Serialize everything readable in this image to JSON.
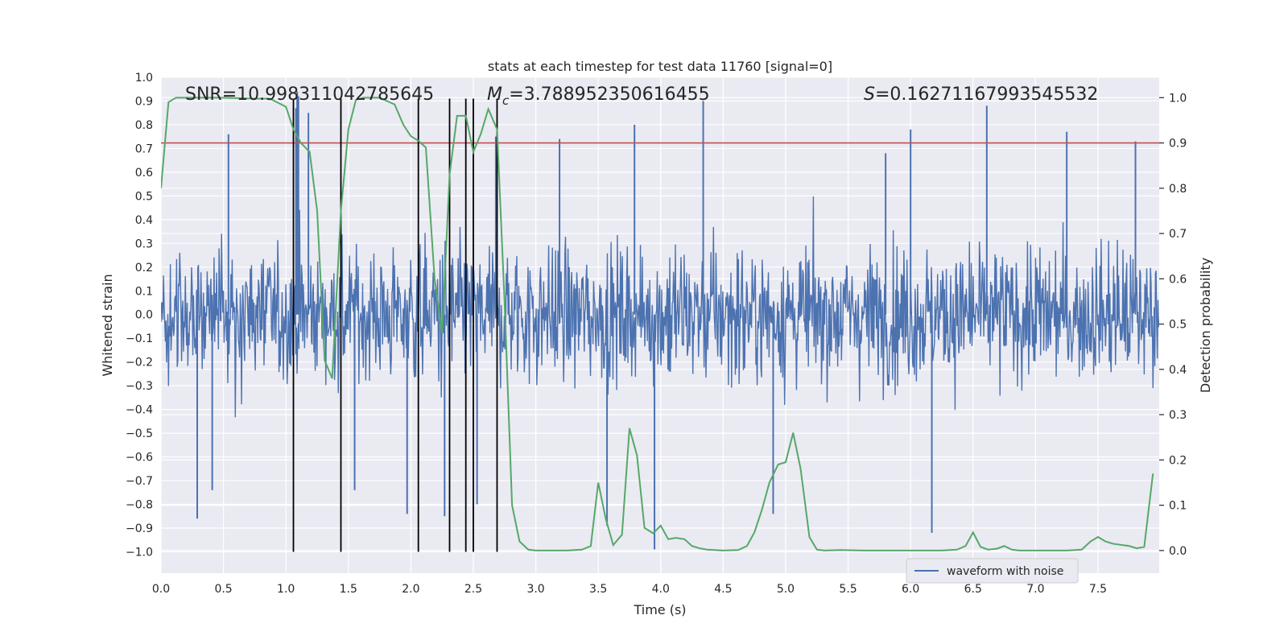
{
  "chart_data": {
    "type": "line",
    "title": "stats at each timestep for test data 11760 [signal=0]",
    "xlabel": "Time (s)",
    "ylabel_left": "Whitened strain",
    "ylabel_right": "Detection probability",
    "xlim": [
      0,
      7.99
    ],
    "ylim_left": [
      -1.09,
      1.0
    ],
    "ylim_right": [
      -0.05,
      1.045
    ],
    "x_ticks": [
      0.0,
      0.5,
      1.0,
      1.5,
      2.0,
      2.5,
      3.0,
      3.5,
      4.0,
      4.5,
      5.0,
      5.5,
      6.0,
      6.5,
      7.0,
      7.5
    ],
    "x_tick_labels": [
      "0.0",
      "0.5",
      "1.0",
      "1.5",
      "2.0",
      "2.5",
      "3.0",
      "3.5",
      "4.0",
      "4.5",
      "5.0",
      "5.5",
      "6.0",
      "6.5",
      "7.0",
      "7.5"
    ],
    "yl_ticks": [
      1.0,
      0.9,
      0.8,
      0.7,
      0.6,
      0.5,
      0.4,
      0.3,
      0.2,
      0.1,
      0.0,
      -0.1,
      -0.2,
      -0.3,
      -0.4,
      -0.5,
      -0.6,
      -0.7,
      -0.8,
      -0.9,
      -1.0
    ],
    "yl_tick_labels": [
      "1.0",
      "0.9",
      "0.8",
      "0.7",
      "0.6",
      "0.5",
      "0.4",
      "0.3",
      "0.2",
      "0.1",
      "0.0",
      "−0.1",
      "−0.2",
      "−0.3",
      "−0.4",
      "−0.5",
      "−0.6",
      "−0.7",
      "−0.8",
      "−0.9",
      "−1.0"
    ],
    "yr_ticks": [
      1.0,
      0.9,
      0.8,
      0.7,
      0.6,
      0.5,
      0.4,
      0.3,
      0.2,
      0.1,
      0.0
    ],
    "yr_tick_labels": [
      "1.0",
      "0.9",
      "0.8",
      "0.7",
      "0.6",
      "0.5",
      "0.4",
      "0.3",
      "0.2",
      "0.1",
      "0.0"
    ],
    "annotations": {
      "snr": "SNR=10.998311042785645",
      "mc_symbol": "M",
      "mc_sub": "c",
      "mc_value": "=3.788952350616455",
      "s_symbol": "S",
      "s_value": "=0.16271167993545532"
    },
    "threshold_right": 0.9,
    "event_lines_x": [
      1.06,
      1.44,
      2.06,
      2.31,
      2.44,
      2.5,
      2.69
    ],
    "event_lines_range": [
      -1.0,
      0.91
    ],
    "waveform": {
      "name": "waveform with noise",
      "color": "#4c72b0",
      "noise_sigma": 0.2,
      "samples": 1600,
      "spikes": [
        {
          "t": 0.29,
          "v": -0.86
        },
        {
          "t": 0.54,
          "v": 0.76
        },
        {
          "t": 0.41,
          "v": -0.74
        },
        {
          "t": 1.08,
          "v": 0.87
        },
        {
          "t": 1.09,
          "v": 0.94
        },
        {
          "t": 1.1,
          "v": 0.92
        },
        {
          "t": 1.55,
          "v": -0.74
        },
        {
          "t": 1.18,
          "v": 0.85
        },
        {
          "t": 1.97,
          "v": -0.84
        },
        {
          "t": 2.27,
          "v": -0.85
        },
        {
          "t": 2.53,
          "v": -0.8
        },
        {
          "t": 3.79,
          "v": 0.8
        },
        {
          "t": 3.57,
          "v": -0.89
        },
        {
          "t": 3.95,
          "v": -0.99
        },
        {
          "t": 4.34,
          "v": 0.9
        },
        {
          "t": 6.61,
          "v": 0.88
        },
        {
          "t": 6.17,
          "v": -0.92
        },
        {
          "t": 6.0,
          "v": 0.78
        },
        {
          "t": 7.25,
          "v": 0.77
        },
        {
          "t": 7.8,
          "v": 0.73
        },
        {
          "t": 4.9,
          "v": -0.84
        },
        {
          "t": 5.8,
          "v": 0.68
        },
        {
          "t": 3.19,
          "v": 0.74
        },
        {
          "t": 2.68,
          "v": 0.75
        }
      ]
    },
    "probability": {
      "name": "detection probability",
      "color": "#55a868",
      "t": [
        0.0,
        0.06,
        0.12,
        0.25,
        0.5,
        0.75,
        0.87,
        1.0,
        1.06,
        1.12,
        1.19,
        1.25,
        1.31,
        1.37,
        1.44,
        1.5,
        1.56,
        1.62,
        1.75,
        1.87,
        1.94,
        2.0,
        2.06,
        2.12,
        2.19,
        2.25,
        2.31,
        2.37,
        2.44,
        2.5,
        2.56,
        2.62,
        2.69,
        2.75,
        2.81,
        2.87,
        2.94,
        3.0,
        3.12,
        3.25,
        3.37,
        3.44,
        3.5,
        3.56,
        3.62,
        3.69,
        3.75,
        3.81,
        3.87,
        3.94,
        4.0,
        4.06,
        4.12,
        4.19,
        4.25,
        4.31,
        4.37,
        4.5,
        4.62,
        4.69,
        4.75,
        4.81,
        4.87,
        4.94,
        5.0,
        5.06,
        5.12,
        5.19,
        5.25,
        5.31,
        5.44,
        5.62,
        5.81,
        6.0,
        6.25,
        6.37,
        6.44,
        6.5,
        6.56,
        6.62,
        6.69,
        6.75,
        6.81,
        6.87,
        7.0,
        7.25,
        7.37,
        7.44,
        7.5,
        7.56,
        7.62,
        7.75,
        7.81,
        7.87,
        7.94
      ],
      "p": [
        0.8,
        0.99,
        1.0,
        1.0,
        1.0,
        0.998,
        0.998,
        0.98,
        0.93,
        0.9,
        0.88,
        0.75,
        0.42,
        0.38,
        0.75,
        0.93,
        0.995,
        1.0,
        1.0,
        0.985,
        0.94,
        0.915,
        0.905,
        0.89,
        0.6,
        0.48,
        0.83,
        0.96,
        0.96,
        0.88,
        0.92,
        0.975,
        0.93,
        0.55,
        0.1,
        0.02,
        0.002,
        0.0,
        0.0,
        0.0,
        0.002,
        0.01,
        0.15,
        0.07,
        0.012,
        0.035,
        0.27,
        0.21,
        0.05,
        0.038,
        0.055,
        0.025,
        0.028,
        0.025,
        0.01,
        0.005,
        0.002,
        0.0,
        0.001,
        0.01,
        0.04,
        0.09,
        0.15,
        0.19,
        0.195,
        0.26,
        0.18,
        0.03,
        0.002,
        0.0,
        0.001,
        0.0,
        0.0,
        0.0,
        0.0,
        0.002,
        0.01,
        0.04,
        0.008,
        0.002,
        0.004,
        0.01,
        0.002,
        0.0,
        0.0,
        0.0,
        0.002,
        0.02,
        0.03,
        0.02,
        0.015,
        0.01,
        0.005,
        0.008,
        0.17
      ]
    },
    "legend": {
      "label": "waveform with noise",
      "position": "lower-right"
    },
    "colors": {
      "background": "#eaeaf2",
      "grid": "#ffffff",
      "threshold": "#c44e52",
      "event_line": "#000000"
    }
  }
}
